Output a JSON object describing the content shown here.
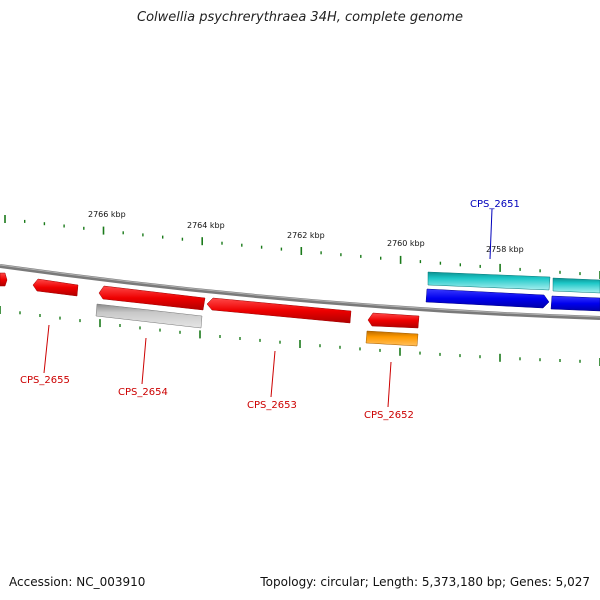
{
  "title": "Colwellia psychrerythraea 34H, complete genome",
  "footer": {
    "accession": "Accession: NC_003910",
    "summary": "Topology: circular; Length: 5,373,180 bp; Genes: 5,027"
  },
  "colors": {
    "backbone": "#7a7a7a",
    "tick": "#1a7a1a",
    "red": "#ee0000",
    "red_label": "#cc0000",
    "grey": "#b8b8b8",
    "orange": "#ff9900",
    "cyan": "#1ec8c8",
    "blue": "#0000ee",
    "blue_label": "#0000bb"
  },
  "kbp_labels": [
    "2766 kbp",
    "2764 kbp",
    "2762 kbp",
    "2760 kbp",
    "2758 kbp"
  ],
  "gene_labels": [
    {
      "name": "CPS_2655",
      "color": "red_label"
    },
    {
      "name": "CPS_2654",
      "color": "red_label"
    },
    {
      "name": "CPS_2653",
      "color": "red_label"
    },
    {
      "name": "CPS_2652",
      "color": "red_label"
    },
    {
      "name": "CPS_2651",
      "color": "blue_label"
    }
  ]
}
